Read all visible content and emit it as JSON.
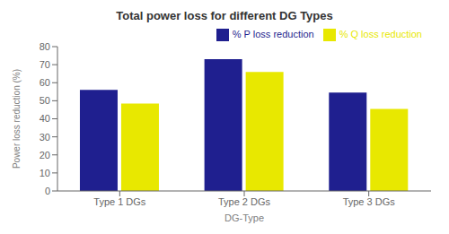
{
  "chart_data": {
    "type": "bar",
    "title": "Total power loss for different DG Types",
    "xlabel": "DG-Type",
    "ylabel": "Power loss reduction (%)",
    "categories": [
      "Type 1 DGs",
      "Type 2 DGs",
      "Type 3 DGs"
    ],
    "series": [
      {
        "name": "% P loss reduction",
        "color": "#1f1f8f",
        "values": [
          56,
          73,
          54.5
        ]
      },
      {
        "name": "% Q loss reduction",
        "color": "#e8e800",
        "values": [
          48.5,
          66,
          45.5
        ]
      }
    ],
    "ylim": [
      0,
      80
    ],
    "yticks": [
      0,
      10,
      20,
      30,
      40,
      50,
      60,
      70,
      80
    ],
    "grid": false,
    "legend": "upper right"
  }
}
